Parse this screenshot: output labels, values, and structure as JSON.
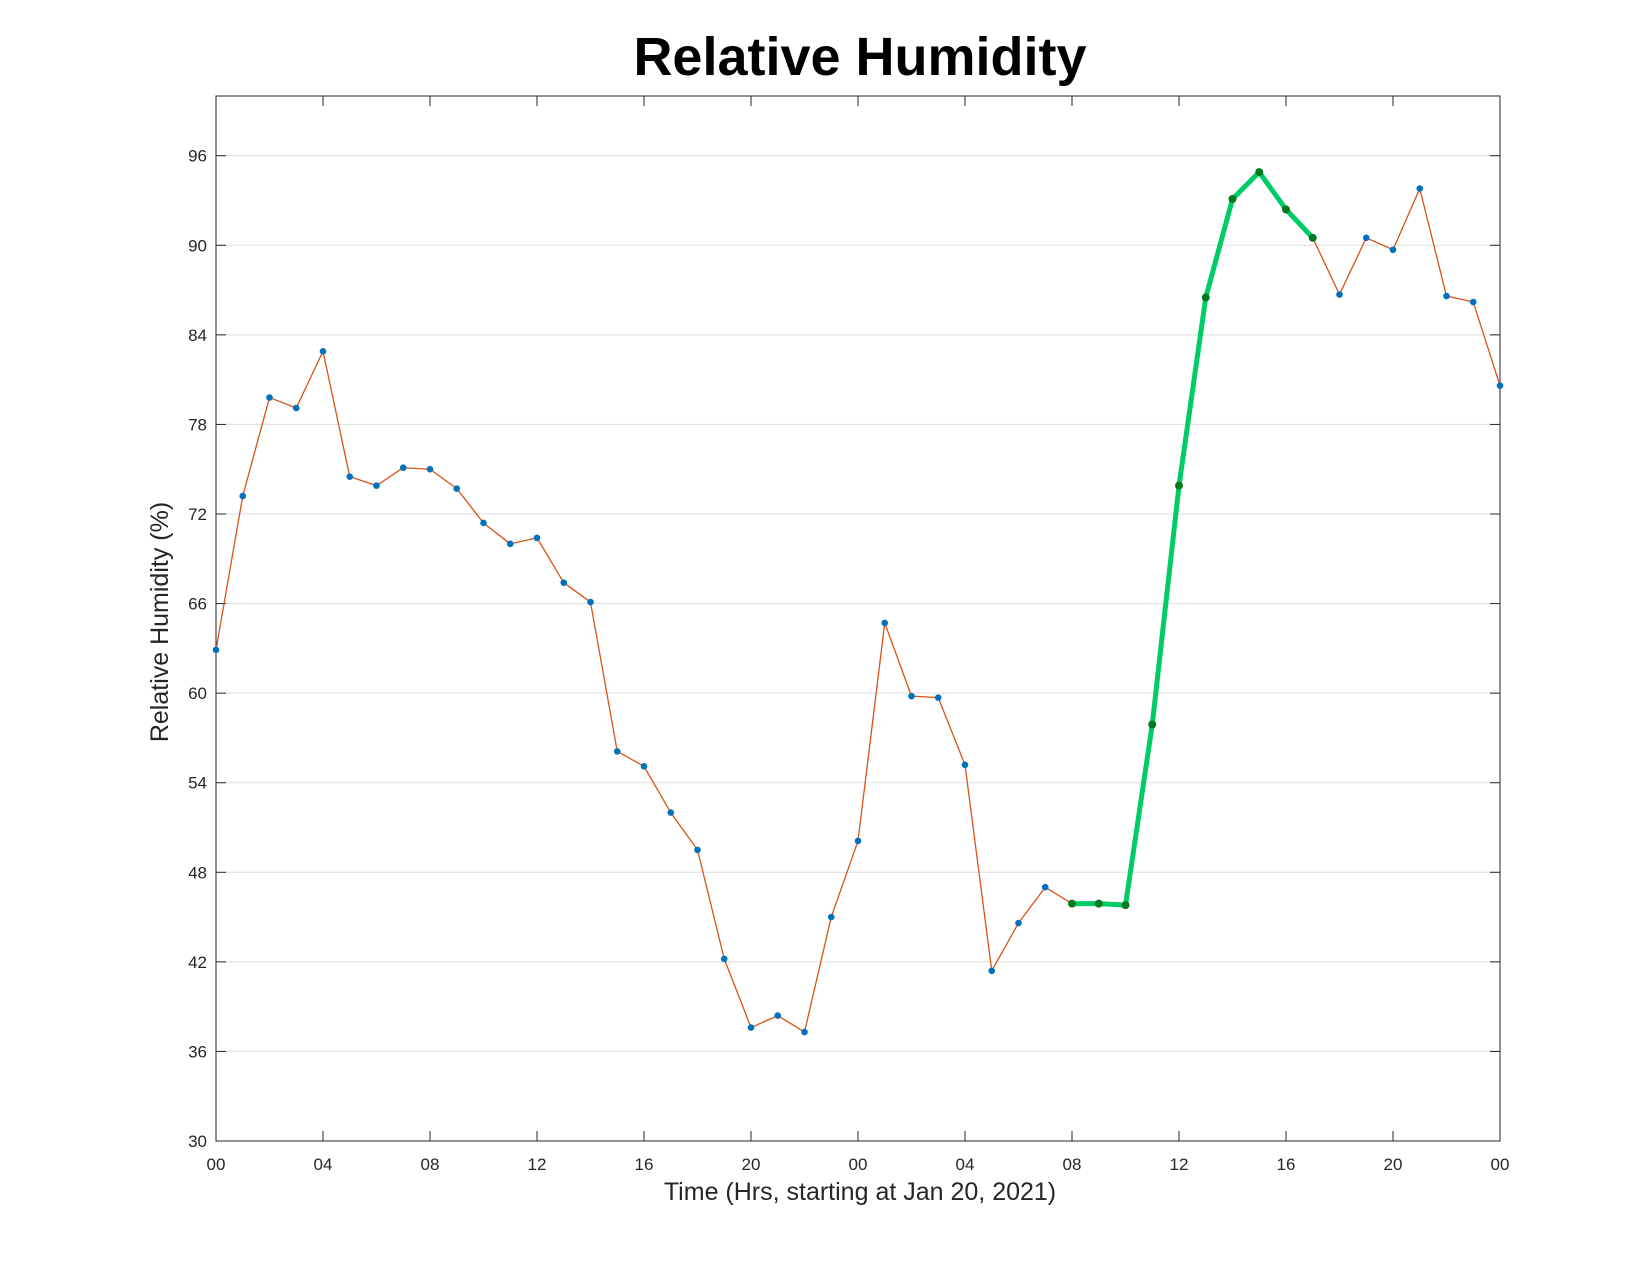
{
  "chart_data": {
    "type": "line",
    "title": "Relative Humidity",
    "xlabel": "Time (Hrs, starting at Jan 20, 2021)",
    "ylabel": "Relative Humidity (%)",
    "ylim": [
      30,
      100
    ],
    "xlim": [
      0,
      48
    ],
    "yticks": [
      30,
      36,
      42,
      48,
      54,
      60,
      66,
      72,
      78,
      84,
      90,
      96
    ],
    "xticks": [
      0,
      4,
      8,
      12,
      16,
      20,
      24,
      28,
      32,
      36,
      40,
      44,
      48
    ],
    "xtick_labels": [
      "00",
      "04",
      "08",
      "12",
      "16",
      "20",
      "00",
      "04",
      "08",
      "12",
      "16",
      "20",
      "00"
    ],
    "grid": "horizontal",
    "colors": {
      "line": "#d95319",
      "marker": "#0072bd",
      "highlight_line": "#00cc66",
      "highlight_marker": "#007a1f",
      "grid": "#dedede",
      "frame": "#262626"
    },
    "series": [
      {
        "x": [
          0,
          1,
          2,
          3,
          4,
          5,
          6,
          7,
          8,
          9,
          10,
          11,
          12,
          13,
          14,
          15,
          16,
          17,
          18,
          19,
          20,
          21,
          22,
          23,
          24,
          25,
          26,
          27,
          28,
          29,
          30,
          31,
          32,
          33,
          34,
          35,
          36,
          37,
          38,
          39,
          40,
          41,
          42,
          43,
          44,
          45,
          46,
          47,
          48
        ],
        "values": [
          62.9,
          73.2,
          79.8,
          79.1,
          82.9,
          74.5,
          73.9,
          75.1,
          75.0,
          73.7,
          71.4,
          70.0,
          70.4,
          67.4,
          66.1,
          56.1,
          55.1,
          52.0,
          49.5,
          42.2,
          37.6,
          38.4,
          37.3,
          45.0,
          50.1,
          64.7,
          59.8,
          59.7,
          55.2,
          41.4,
          44.6,
          47.0,
          45.9,
          45.9,
          45.8,
          57.9,
          73.9,
          86.5,
          93.1,
          94.9,
          92.4,
          90.5,
          86.7,
          90.5,
          89.7,
          93.8,
          86.6,
          86.2,
          80.6
        ],
        "highlight_range": [
          32,
          41
        ]
      }
    ]
  }
}
